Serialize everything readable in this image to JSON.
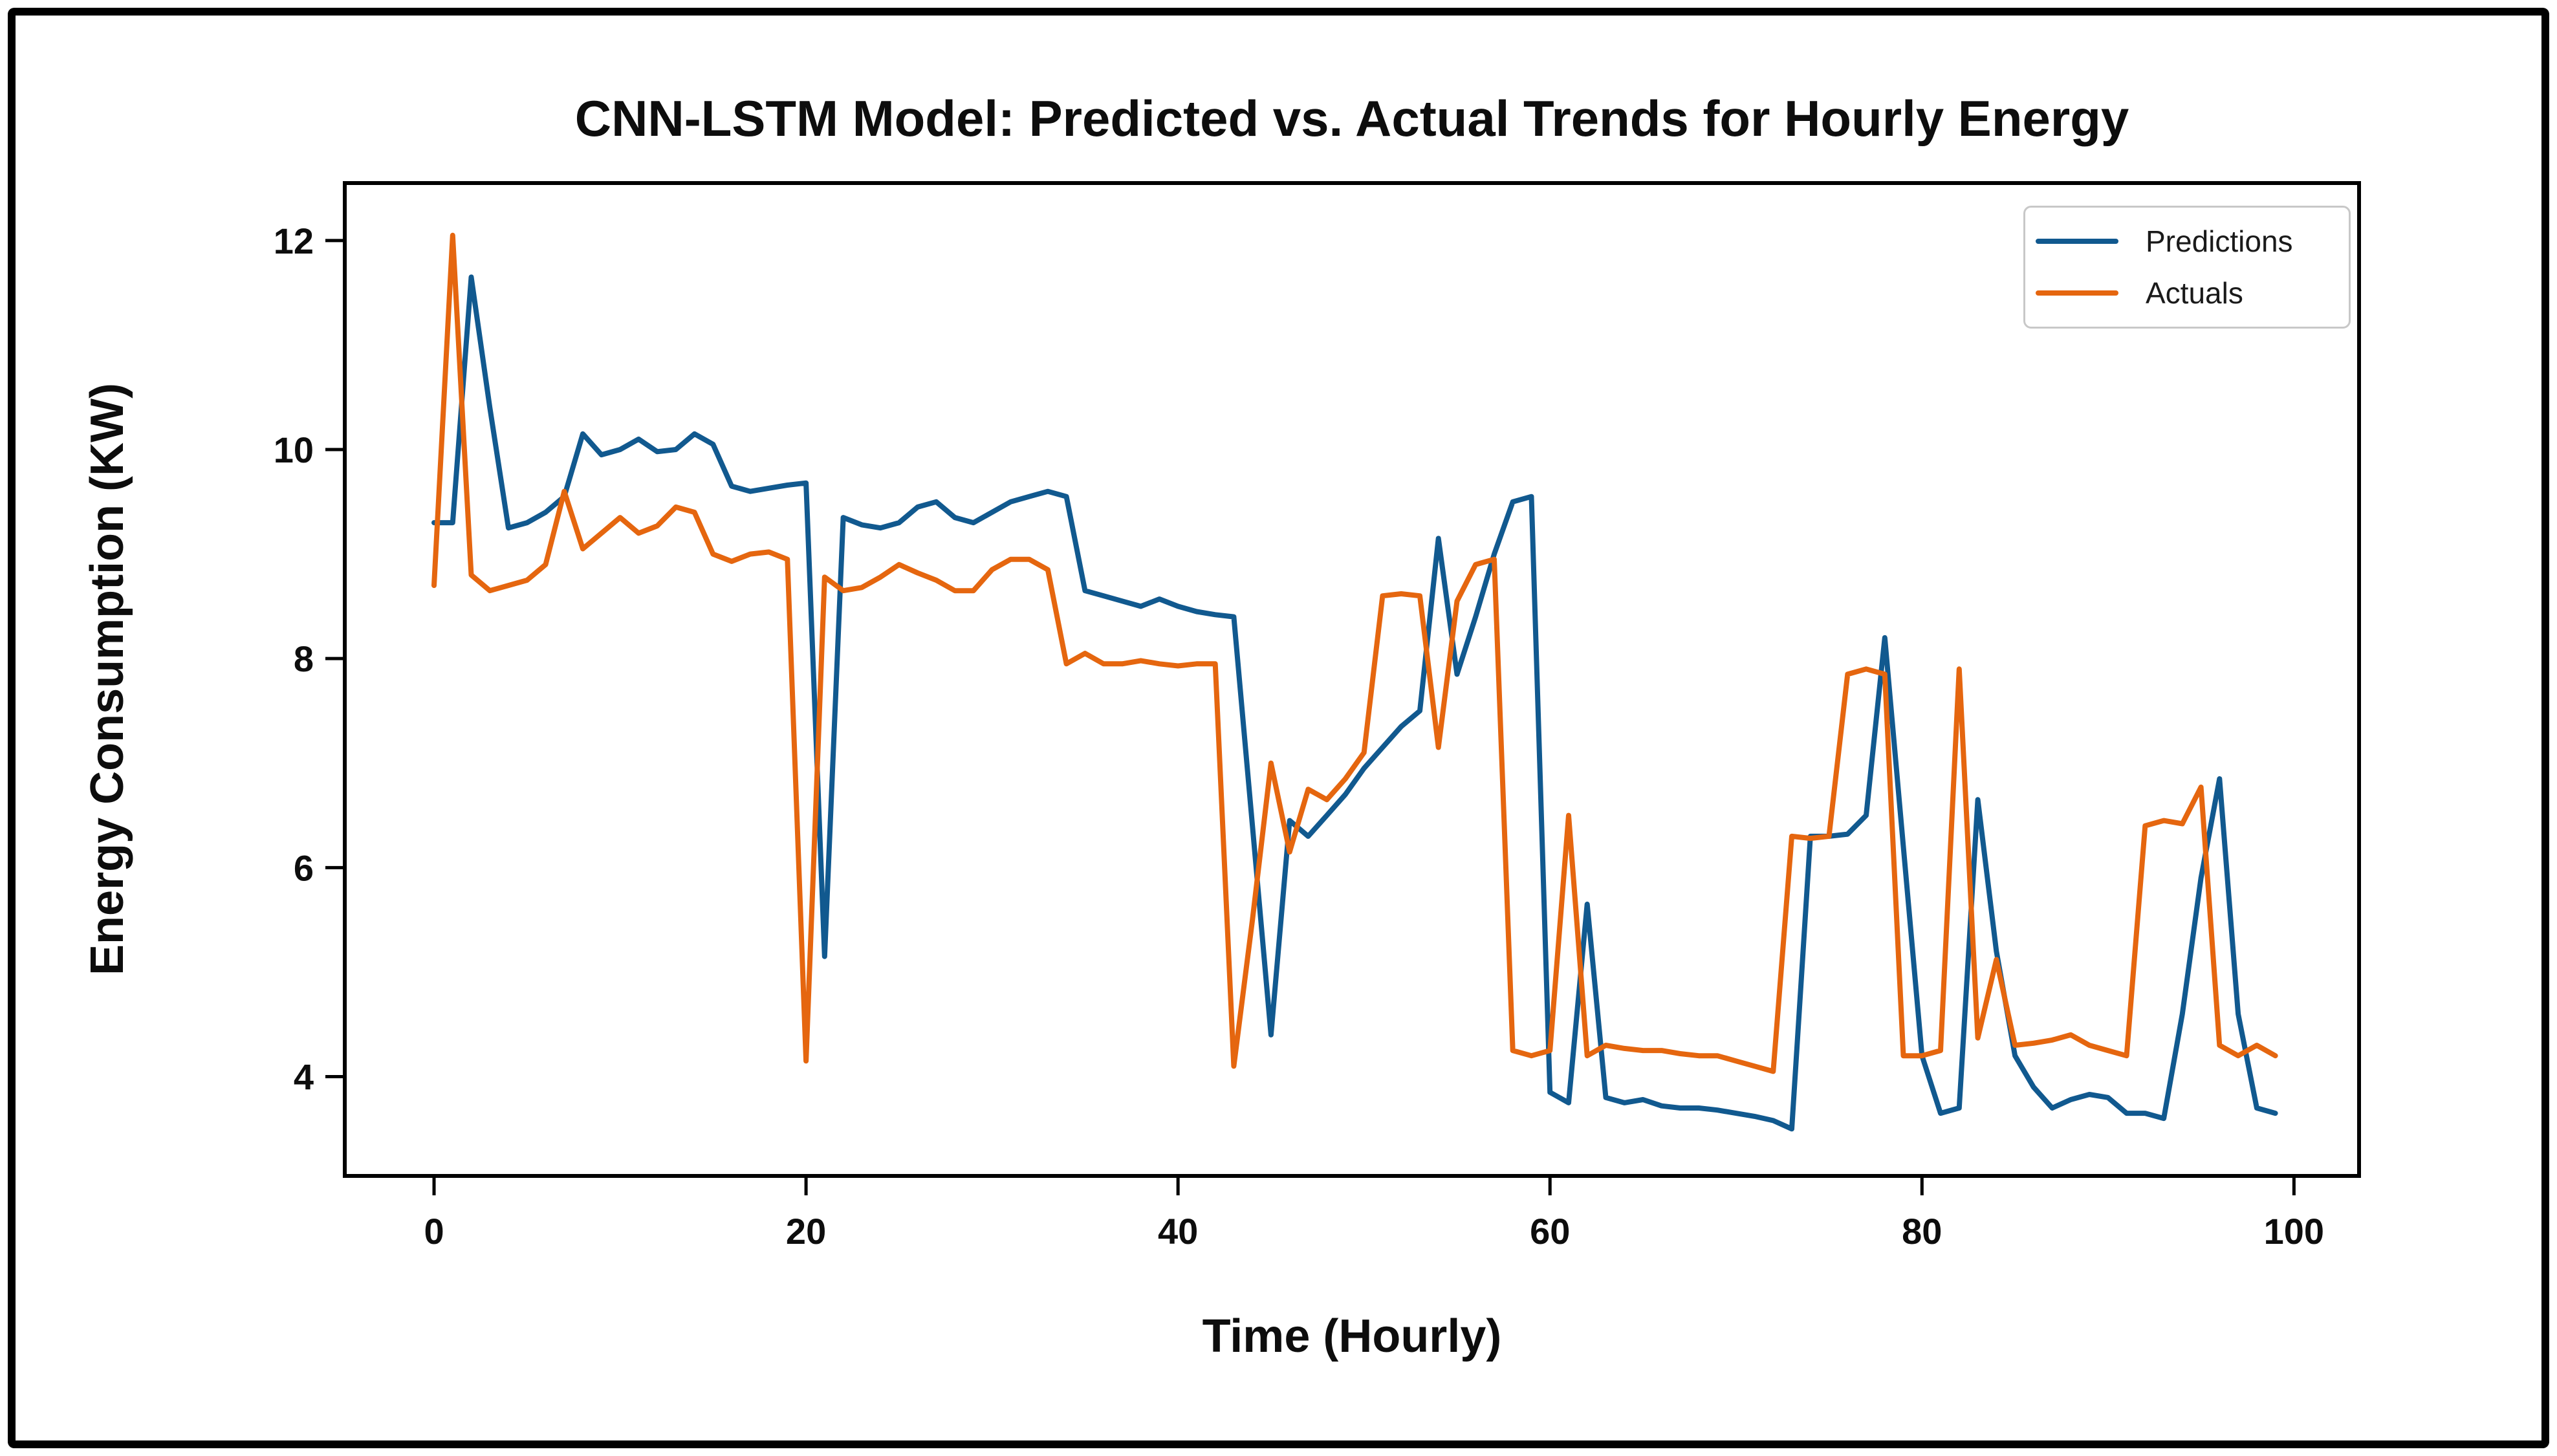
{
  "chart_data": {
    "type": "line",
    "title": "CNN-LSTM Model: Predicted vs. Actual Trends for Hourly Energy",
    "xlabel": "Time (Hourly)",
    "ylabel": "Energy Consumption (KW)",
    "x_ticks": [
      0,
      20,
      40,
      60,
      80,
      100
    ],
    "y_ticks": [
      4,
      6,
      8,
      10,
      12
    ],
    "xlim": [
      -4.8,
      103.5
    ],
    "ylim": [
      3.05,
      12.55
    ],
    "grid": false,
    "legend_position": "upper right",
    "n_points": 100,
    "x_note": "hourly index 0-99",
    "series": [
      {
        "name": "Predictions",
        "color": "#11598f",
        "values": [
          9.3,
          9.3,
          11.65,
          10.4,
          9.25,
          9.3,
          9.4,
          9.55,
          10.15,
          9.95,
          10.0,
          10.1,
          9.98,
          10.0,
          10.15,
          10.05,
          9.65,
          9.6,
          9.63,
          9.66,
          9.68,
          5.15,
          9.35,
          9.28,
          9.25,
          9.3,
          9.45,
          9.5,
          9.35,
          9.3,
          9.4,
          9.5,
          9.55,
          9.6,
          9.55,
          8.65,
          8.6,
          8.55,
          8.5,
          8.57,
          8.5,
          8.45,
          8.42,
          8.4,
          6.4,
          4.4,
          6.45,
          6.3,
          6.5,
          6.7,
          6.95,
          7.15,
          7.35,
          7.5,
          9.15,
          7.85,
          8.4,
          9.0,
          9.5,
          9.55,
          3.85,
          3.75,
          5.65,
          3.8,
          3.75,
          3.78,
          3.72,
          3.7,
          3.7,
          3.68,
          3.65,
          3.62,
          3.58,
          3.5,
          6.3,
          6.3,
          6.32,
          6.5,
          8.2,
          6.2,
          4.2,
          3.65,
          3.7,
          6.65,
          5.2,
          4.2,
          3.9,
          3.7,
          3.78,
          3.83,
          3.8,
          3.65,
          3.65,
          3.6,
          4.6,
          5.9,
          6.85,
          4.6,
          3.7,
          3.65
        ]
      },
      {
        "name": "Actuals",
        "color": "#e5660f",
        "values": [
          8.7,
          12.05,
          8.8,
          8.65,
          8.7,
          8.75,
          8.9,
          9.6,
          9.05,
          9.2,
          9.35,
          9.2,
          9.27,
          9.45,
          9.4,
          9.0,
          8.93,
          9.0,
          9.02,
          8.95,
          4.15,
          8.78,
          8.65,
          8.68,
          8.78,
          8.9,
          8.82,
          8.75,
          8.65,
          8.65,
          8.85,
          8.95,
          8.95,
          8.85,
          7.95,
          8.05,
          7.95,
          7.95,
          7.98,
          7.95,
          7.93,
          7.95,
          7.95,
          4.1,
          5.5,
          7.0,
          6.15,
          6.75,
          6.65,
          6.85,
          7.1,
          8.6,
          8.62,
          8.6,
          7.15,
          8.55,
          8.9,
          8.95,
          4.25,
          4.2,
          4.25,
          6.5,
          4.2,
          4.3,
          4.27,
          4.25,
          4.25,
          4.22,
          4.2,
          4.2,
          4.15,
          4.1,
          4.05,
          6.3,
          6.28,
          6.3,
          7.85,
          7.9,
          7.85,
          4.2,
          4.2,
          4.25,
          7.9,
          4.37,
          5.12,
          4.3,
          4.32,
          4.35,
          4.4,
          4.3,
          4.25,
          4.2,
          6.4,
          6.45,
          6.42,
          6.77,
          4.3,
          4.2,
          4.3,
          4.2
        ]
      }
    ]
  },
  "colors": {
    "frame_border": "#000000",
    "axis": "#000000",
    "text": "#0d0d0d",
    "legend_border": "#c8c8c8",
    "background": "#ffffff"
  }
}
